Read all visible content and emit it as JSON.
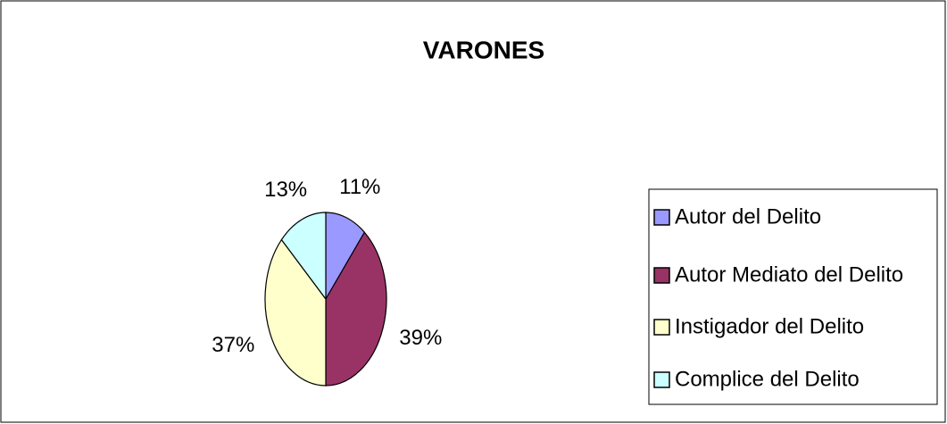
{
  "chart_data": {
    "type": "pie",
    "title": "VARONES",
    "categories": [
      "Autor del Delito",
      "Autor Mediato del Delito",
      "Instigador del Delito",
      "Complice del Delito"
    ],
    "values": [
      11,
      39,
      37,
      13
    ],
    "value_labels": [
      "11%",
      "39%",
      "37%",
      "13%"
    ],
    "colors": [
      "#9999ff",
      "#993366",
      "#ffffcc",
      "#ccffff"
    ],
    "legend": "right"
  }
}
